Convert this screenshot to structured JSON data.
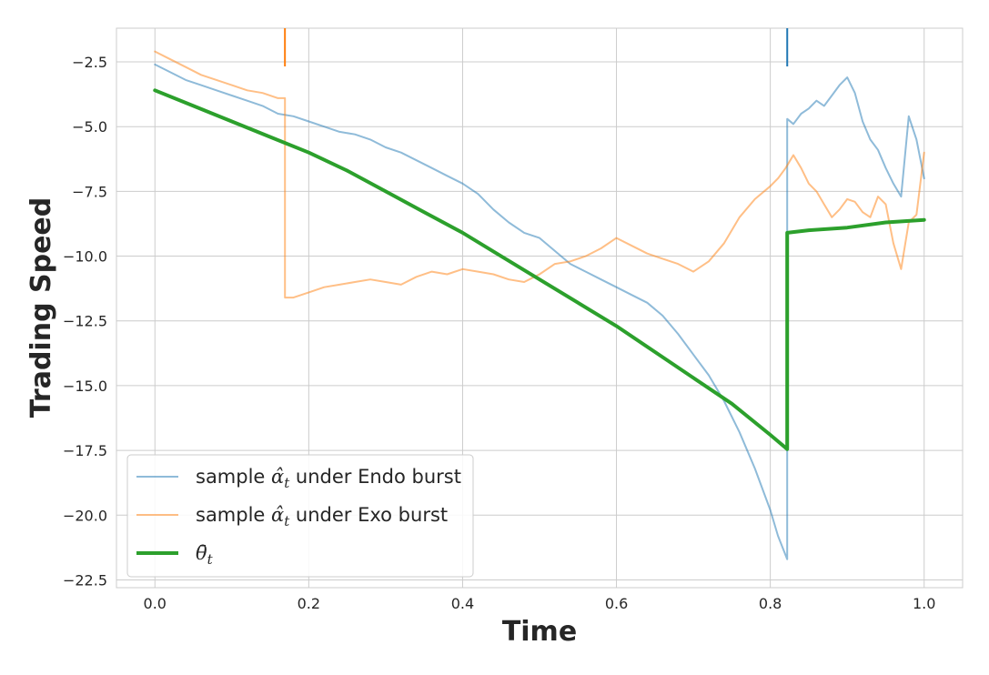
{
  "chart_data": {
    "type": "line",
    "xlabel": "Time",
    "ylabel": "Trading Speed",
    "xlim": [
      -0.05,
      1.05
    ],
    "ylim": [
      -22.8,
      -1.2
    ],
    "xticks": [
      0.0,
      0.2,
      0.4,
      0.6,
      0.8,
      1.0
    ],
    "xtick_labels": [
      "0.0",
      "0.2",
      "0.4",
      "0.6",
      "0.8",
      "1.0"
    ],
    "yticks": [
      -2.5,
      -5.0,
      -7.5,
      -10.0,
      -12.5,
      -15.0,
      -17.5,
      -20.0,
      -22.5
    ],
    "ytick_labels": [
      "−2.5",
      "−5.0",
      "−7.5",
      "−10.0",
      "−12.5",
      "−15.0",
      "−17.5",
      "−20.0",
      "−22.5"
    ],
    "grid": true,
    "legend_position": "lower-left",
    "burst_markers": [
      {
        "x": 0.169,
        "color": "#ff7f0e"
      },
      {
        "x": 0.822,
        "color": "#1f77b4"
      }
    ],
    "series": [
      {
        "name_prefix": "sample ",
        "name_math": "α̂",
        "name_sub": "t",
        "name_suffix": " under Endo burst",
        "color": "#1f77b4",
        "alpha": 0.5,
        "width": 2,
        "x": [
          0.0,
          0.02,
          0.04,
          0.06,
          0.08,
          0.1,
          0.12,
          0.14,
          0.16,
          0.18,
          0.2,
          0.22,
          0.24,
          0.26,
          0.28,
          0.3,
          0.32,
          0.34,
          0.36,
          0.38,
          0.4,
          0.42,
          0.44,
          0.46,
          0.48,
          0.5,
          0.52,
          0.54,
          0.56,
          0.58,
          0.6,
          0.62,
          0.64,
          0.66,
          0.68,
          0.7,
          0.72,
          0.74,
          0.76,
          0.78,
          0.8,
          0.81,
          0.822,
          0.822,
          0.83,
          0.84,
          0.85,
          0.86,
          0.87,
          0.88,
          0.89,
          0.9,
          0.91,
          0.92,
          0.93,
          0.94,
          0.95,
          0.96,
          0.97,
          0.98,
          0.99,
          1.0
        ],
        "y": [
          -2.6,
          -2.9,
          -3.2,
          -3.4,
          -3.6,
          -3.8,
          -4.0,
          -4.2,
          -4.5,
          -4.6,
          -4.8,
          -5.0,
          -5.2,
          -5.3,
          -5.5,
          -5.8,
          -6.0,
          -6.3,
          -6.6,
          -6.9,
          -7.2,
          -7.6,
          -8.2,
          -8.7,
          -9.1,
          -9.3,
          -9.8,
          -10.3,
          -10.6,
          -10.9,
          -11.2,
          -11.5,
          -11.8,
          -12.3,
          -13.0,
          -13.8,
          -14.6,
          -15.6,
          -16.8,
          -18.2,
          -19.8,
          -20.8,
          -21.7,
          -4.7,
          -4.9,
          -4.5,
          -4.3,
          -4.0,
          -4.2,
          -3.8,
          -3.4,
          -3.1,
          -3.7,
          -4.8,
          -5.5,
          -5.9,
          -6.6,
          -7.2,
          -7.7,
          -4.6,
          -5.5,
          -7.0
        ]
      },
      {
        "name_prefix": "sample ",
        "name_math": "α̂",
        "name_sub": "t",
        "name_suffix": " under Exo burst",
        "color": "#ff7f0e",
        "alpha": 0.5,
        "width": 2,
        "x": [
          0.0,
          0.02,
          0.04,
          0.06,
          0.08,
          0.1,
          0.12,
          0.14,
          0.16,
          0.169,
          0.169,
          0.18,
          0.2,
          0.22,
          0.24,
          0.26,
          0.28,
          0.3,
          0.32,
          0.34,
          0.36,
          0.38,
          0.4,
          0.42,
          0.44,
          0.46,
          0.48,
          0.5,
          0.52,
          0.54,
          0.56,
          0.58,
          0.6,
          0.62,
          0.64,
          0.66,
          0.68,
          0.7,
          0.72,
          0.74,
          0.76,
          0.78,
          0.8,
          0.81,
          0.82,
          0.83,
          0.84,
          0.85,
          0.86,
          0.87,
          0.88,
          0.89,
          0.9,
          0.91,
          0.92,
          0.93,
          0.94,
          0.95,
          0.96,
          0.97,
          0.98,
          0.99,
          1.0
        ],
        "y": [
          -2.1,
          -2.4,
          -2.7,
          -3.0,
          -3.2,
          -3.4,
          -3.6,
          -3.7,
          -3.9,
          -3.9,
          -11.6,
          -11.6,
          -11.4,
          -11.2,
          -11.1,
          -11.0,
          -10.9,
          -11.0,
          -11.1,
          -10.8,
          -10.6,
          -10.7,
          -10.5,
          -10.6,
          -10.7,
          -10.9,
          -11.0,
          -10.7,
          -10.3,
          -10.2,
          -10.0,
          -9.7,
          -9.3,
          -9.6,
          -9.9,
          -10.1,
          -10.3,
          -10.6,
          -10.2,
          -9.5,
          -8.5,
          -7.8,
          -7.3,
          -7.0,
          -6.6,
          -6.1,
          -6.6,
          -7.2,
          -7.5,
          -8.0,
          -8.5,
          -8.2,
          -7.8,
          -7.9,
          -8.3,
          -8.5,
          -7.7,
          -8.0,
          -9.5,
          -10.5,
          -8.7,
          -8.4,
          -6.0
        ]
      },
      {
        "name_prefix": "",
        "name_math": "θ̄",
        "name_sub": "t",
        "name_suffix": "",
        "color": "#2ca02c",
        "alpha": 1.0,
        "width": 4,
        "x": [
          0.0,
          0.05,
          0.1,
          0.15,
          0.2,
          0.25,
          0.3,
          0.35,
          0.4,
          0.45,
          0.5,
          0.55,
          0.6,
          0.65,
          0.7,
          0.75,
          0.8,
          0.822,
          0.822,
          0.85,
          0.9,
          0.95,
          1.0
        ],
        "y": [
          -3.6,
          -4.2,
          -4.8,
          -5.4,
          -6.0,
          -6.7,
          -7.5,
          -8.3,
          -9.1,
          -10.0,
          -10.9,
          -11.8,
          -12.7,
          -13.7,
          -14.7,
          -15.7,
          -16.9,
          -17.45,
          -9.1,
          -9.0,
          -8.9,
          -8.7,
          -8.6
        ]
      }
    ]
  }
}
